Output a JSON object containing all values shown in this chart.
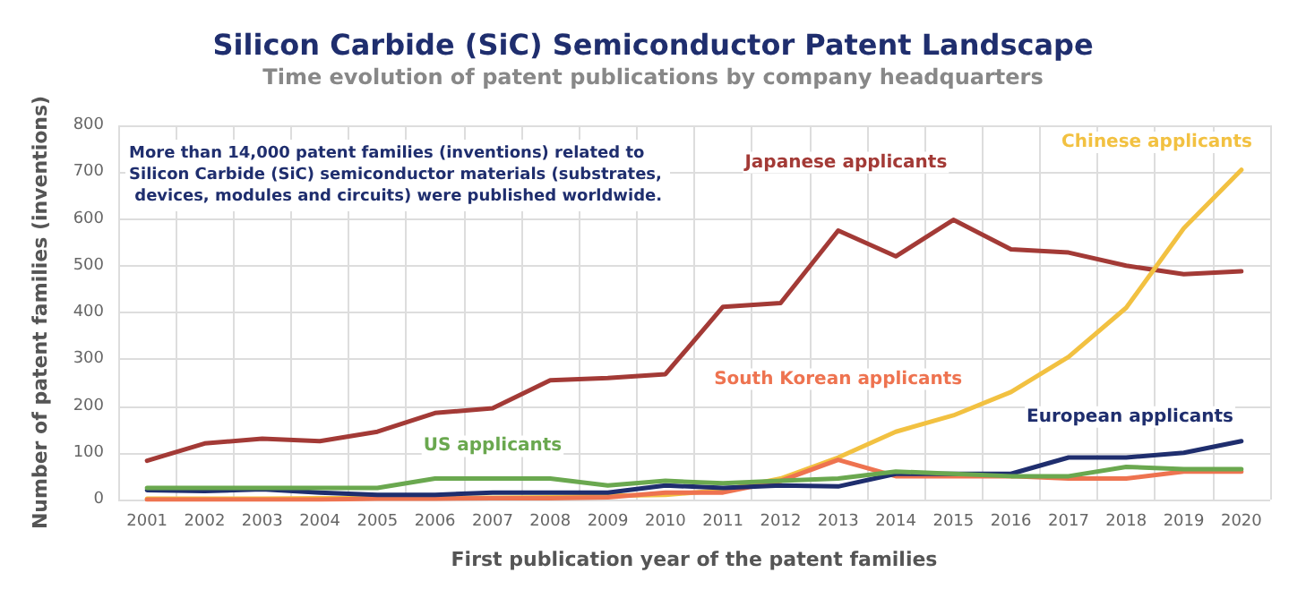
{
  "chart_data": {
    "type": "line",
    "title": "Silicon Carbide (SiC) Semiconductor Patent Landscape",
    "subtitle": "Time evolution of patent publications by company headquarters",
    "xlabel": "First publication year of the patent families",
    "ylabel": "Number of patent families (inventions)",
    "annotations": [
      "More than 14,000 patent families (inventions) related to Silicon Carbide (SiC) semiconductor materials (substrates, devices, modules and circuits) were published worldwide."
    ],
    "categories": [
      "2001",
      "2002",
      "2003",
      "2004",
      "2005",
      "2006",
      "2007",
      "2008",
      "2009",
      "2010",
      "2011",
      "2012",
      "2013",
      "2014",
      "2015",
      "2016",
      "2017",
      "2018",
      "2019",
      "2020"
    ],
    "series": [
      {
        "name": "Japanese applicants",
        "color": "#a33a36",
        "values": [
          83,
          120,
          130,
          125,
          145,
          185,
          195,
          255,
          260,
          268,
          412,
          420,
          575,
          520,
          598,
          535,
          528,
          500,
          482,
          488
        ]
      },
      {
        "name": "Chinese applicants",
        "color": "#f2c141",
        "values": [
          2,
          2,
          2,
          3,
          3,
          4,
          4,
          5,
          8,
          10,
          20,
          45,
          90,
          145,
          180,
          230,
          305,
          410,
          580,
          705
        ]
      },
      {
        "name": "South Korean applicants",
        "color": "#ee7350",
        "values": [
          0,
          0,
          0,
          0,
          2,
          2,
          3,
          3,
          5,
          15,
          15,
          40,
          85,
          50,
          50,
          50,
          45,
          45,
          60,
          60
        ]
      },
      {
        "name": "European applicants",
        "color": "#1f2e6e",
        "values": [
          20,
          18,
          22,
          15,
          10,
          10,
          15,
          15,
          15,
          30,
          25,
          30,
          28,
          55,
          55,
          55,
          90,
          90,
          100,
          125
        ]
      },
      {
        "name": "US applicants",
        "color": "#6aa84f",
        "values": [
          25,
          25,
          25,
          25,
          25,
          45,
          45,
          45,
          30,
          40,
          35,
          40,
          45,
          60,
          55,
          50,
          50,
          70,
          65,
          65
        ]
      }
    ],
    "ylim": [
      0,
      800
    ],
    "yticks": [
      0,
      100,
      200,
      300,
      400,
      500,
      600,
      700,
      800
    ],
    "grid": true,
    "legend": false,
    "marker": "none",
    "line_style": "solid"
  }
}
